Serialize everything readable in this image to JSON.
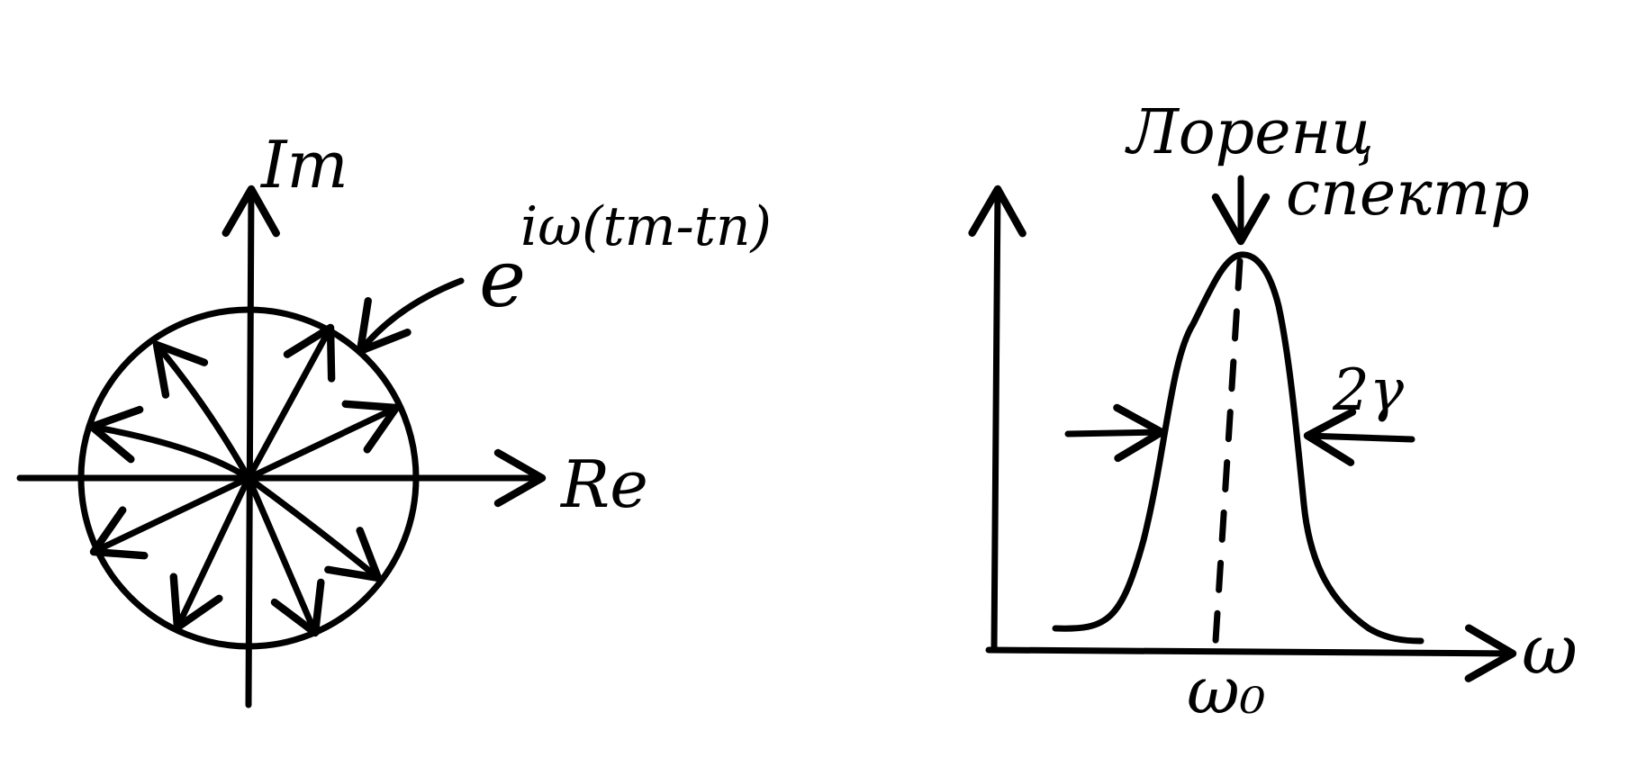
{
  "ink_color": "#000000",
  "background_color": "#ffffff",
  "phasor_diagram": {
    "axis_imag_label": "Im",
    "axis_real_label": "Re",
    "exp_base": "e",
    "exp_power": "iω(tm-tn)"
  },
  "spectrum_diagram": {
    "title_line1": "Лоренц",
    "title_line2": "спектр",
    "width_label": "2γ",
    "x_axis_label": "ω",
    "center_label": "ω₀"
  }
}
